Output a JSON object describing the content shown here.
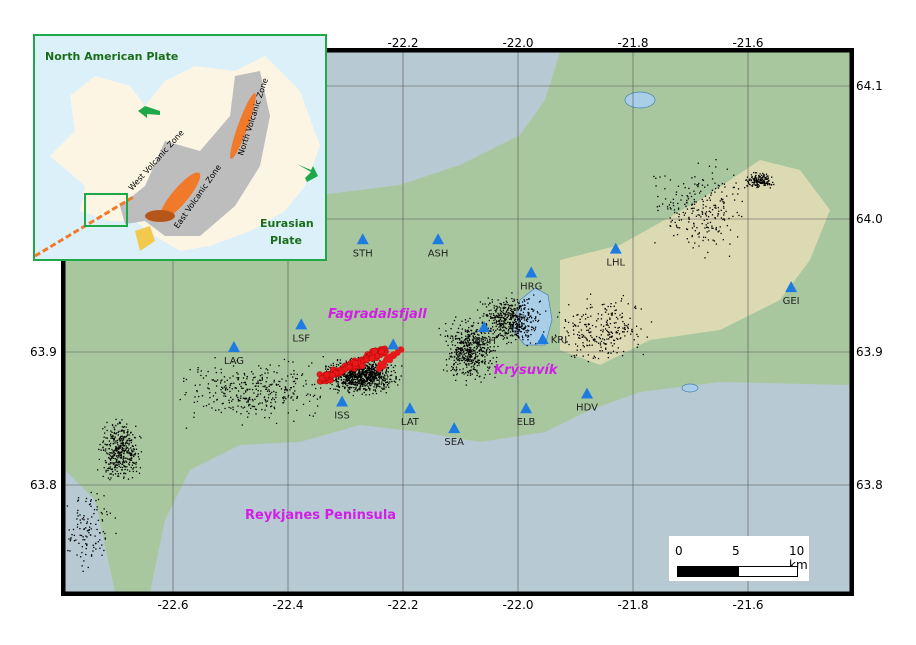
{
  "map": {
    "lon_ticks": [
      -22.6,
      -22.4,
      -22.2,
      -22.0,
      -21.8,
      -21.6
    ],
    "lat_ticks": [
      63.8,
      63.9,
      64.0,
      64.1
    ],
    "lon_ticks_top": [
      -22.2,
      -22.0,
      -21.8,
      -21.6
    ],
    "stations": [
      {
        "code": "STH",
        "lon": -22.27,
        "lat": 63.984
      },
      {
        "code": "ASH",
        "lon": -22.139,
        "lat": 63.984
      },
      {
        "code": "HRG",
        "lon": -21.977,
        "lat": 63.959
      },
      {
        "code": "LHL",
        "lon": -21.83,
        "lat": 63.977
      },
      {
        "code": "GEI",
        "lon": -21.525,
        "lat": 63.948
      },
      {
        "code": "LSF",
        "lon": -22.377,
        "lat": 63.92
      },
      {
        "code": "LAG",
        "lon": -22.494,
        "lat": 63.903
      },
      {
        "code": "MOH",
        "lon": -22.059,
        "lat": 63.918
      },
      {
        "code": "KRI",
        "lon": -21.957,
        "lat": 63.909
      },
      {
        "code": "ISS",
        "lon": -22.306,
        "lat": 63.862
      },
      {
        "code": "LAT",
        "lon": -22.188,
        "lat": 63.857
      },
      {
        "code": "SEA",
        "lon": -22.111,
        "lat": 63.842
      },
      {
        "code": "ELB",
        "lon": -21.986,
        "lat": 63.857
      },
      {
        "code": "HDV",
        "lon": -21.88,
        "lat": 63.868
      },
      {
        "code": "",
        "lon": -22.217,
        "lat": 63.905
      }
    ],
    "places": {
      "fagradalsfjall": "Fagradalsfjall",
      "krysuvik": "Krýsuvík",
      "peninsula": "Reykjanes Peninsula"
    },
    "colors": {
      "station": "#1e7be0",
      "eruption": "#e8191b",
      "seismicity": "#000000",
      "place_label": "#d21fe6",
      "sea": "#b7c9d2",
      "land": "#a9c79f"
    }
  },
  "inset": {
    "north_american": "North American Plate",
    "eurasian_1": "Eurasian",
    "eurasian_2": "Plate",
    "wvz": "West Volcanic Zone",
    "evz": "East Volcanic Zone",
    "nvz": "North Volcanic Zone"
  },
  "scale_bar": {
    "l0": "0",
    "l5": "5",
    "l10": "10 km"
  }
}
